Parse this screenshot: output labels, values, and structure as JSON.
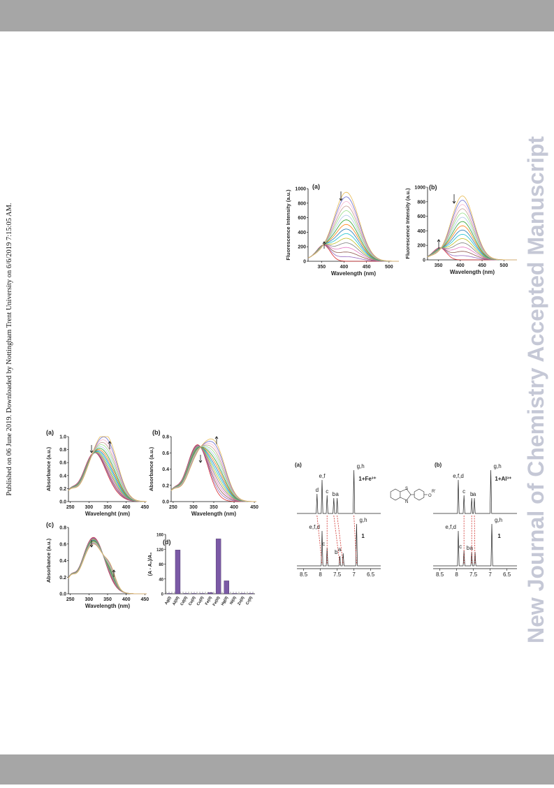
{
  "sidebar_note": "Published on 06 June 2019. Downloaded by Nottingham Trent University on 6/6/2019 7:15:05 AM.",
  "watermark": "New Journal of Chemistry Accepted Manuscript",
  "fluorescence_figure": {
    "panels": [
      {
        "label": "(a)",
        "ylabel": "Fluorescence Intensity (a.u.)",
        "xlabel": "Wavelength (nm)",
        "xlim": [
          320,
          522
        ],
        "ylim": [
          0,
          1000
        ],
        "xticks": [
          350,
          400,
          450,
          500
        ],
        "yticks": [
          0,
          200,
          400,
          600,
          800,
          1000
        ]
      },
      {
        "label": "(b)",
        "ylabel": "Fluorescence Intensity (a.u.)",
        "xlabel": "Wavelength (nm)",
        "xlim": [
          325,
          530
        ],
        "ylim": [
          0,
          1000
        ],
        "xticks": [
          350,
          400,
          450,
          500
        ],
        "yticks": [
          0,
          200,
          400,
          600,
          800,
          1000
        ]
      }
    ]
  },
  "absorbance_figure": {
    "panels": [
      {
        "label": "(a)",
        "ylabel": "Absorbance (a.u.)",
        "xlabel": "Wavelenght (nm)",
        "xlim": [
          245,
          455
        ],
        "ylim": [
          0,
          1.0
        ],
        "xticks": [
          250,
          300,
          350,
          400,
          450
        ],
        "yticks": [
          {
            "value": 0,
            "label": "0.0"
          },
          {
            "value": 0.2,
            "label": "0.2"
          },
          {
            "value": 0.4,
            "label": "0.4"
          },
          {
            "value": 0.6,
            "label": "0.6"
          },
          {
            "value": 0.8,
            "label": "0.8"
          },
          {
            "value": 1,
            "label": "1.0"
          }
        ]
      },
      {
        "label": "(b)",
        "ylabel": "Absorbance (a.u.)",
        "xlabel": "Wavelength (nm)",
        "xlim": [
          245,
          455
        ],
        "ylim": [
          0,
          0.8
        ],
        "xticks": [
          250,
          300,
          350,
          400,
          450
        ],
        "yticks": [
          {
            "value": 0,
            "label": "0.0"
          },
          {
            "value": 0.2,
            "label": "0.2"
          },
          {
            "value": 0.4,
            "label": "0.4"
          },
          {
            "value": 0.6,
            "label": "0.6"
          },
          {
            "value": 0.8,
            "label": "0.8"
          }
        ]
      },
      {
        "label": "(c)",
        "ylabel": "Absorbance (a.u.)",
        "xlabel": "Wavelength (nm)",
        "xlim": [
          245,
          455
        ],
        "ylim": [
          0,
          0.8
        ],
        "xticks": [
          250,
          300,
          350,
          400,
          450
        ],
        "yticks": [
          {
            "value": 0,
            "label": "0.0"
          },
          {
            "value": 0.2,
            "label": "0.2"
          },
          {
            "value": 0.4,
            "label": "0.4"
          },
          {
            "value": 0.6,
            "label": "0.6"
          },
          {
            "value": 0.8,
            "label": "0.8"
          }
        ]
      }
    ],
    "bar_panel": {
      "label": "(d)",
      "ylabel": "(A - A₀)/A₀",
      "categories": [
        "Ag(I)",
        "Al(III)",
        "Cd(II)",
        "Co(II)",
        "Cu(II)",
        "Fe(II)",
        "Fe(III)",
        "Hg(II)",
        "Ni(II)",
        "Zn(II)",
        "Cr(II)"
      ],
      "values": [
        1,
        118,
        1,
        1,
        1,
        3,
        148,
        35,
        1,
        1,
        1
      ],
      "color": "#7b5aa6",
      "ylim": [
        0,
        160
      ],
      "yticks": [
        0,
        40,
        80,
        120,
        160
      ]
    }
  },
  "nmr_figure": {
    "panels": [
      {
        "label": "(a)",
        "top_labels": [
          "d",
          "e,f",
          "c",
          "b",
          "a",
          "g,h",
          "1+Fe³⁺"
        ],
        "bottom_labels": [
          "e,f,d",
          "c",
          "b",
          "a",
          "g,h",
          "1"
        ],
        "xlim": [
          8.7,
          6.2
        ],
        "xticks": [
          8.5,
          8,
          7.5,
          7,
          6.5
        ]
      },
      {
        "label": "(b)",
        "top_labels": [
          "e,f,d",
          "c",
          "b",
          "a",
          "g,h",
          "1+Al³⁺"
        ],
        "bottom_labels": [
          "e,f,d",
          "c",
          "b",
          "a",
          "g,h",
          "1"
        ],
        "xlim": [
          8.7,
          6.2
        ],
        "xticks": [
          8.5,
          8,
          7.5,
          7,
          6.5
        ]
      }
    ],
    "structure_atoms": [
      "S",
      "N",
      "O",
      "R'"
    ]
  }
}
